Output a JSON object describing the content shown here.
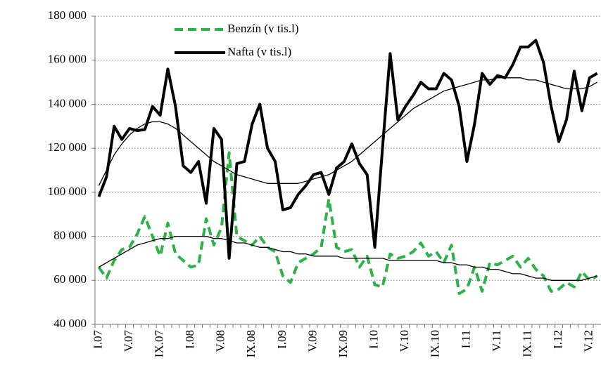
{
  "chart_data": {
    "type": "line",
    "categories": [
      "I.07",
      null,
      null,
      null,
      "V.07",
      null,
      null,
      null,
      "IX.07",
      null,
      null,
      null,
      "I.08",
      null,
      null,
      null,
      "V.08",
      null,
      null,
      null,
      "IX.08",
      null,
      null,
      null,
      "I.09",
      null,
      null,
      null,
      "V.09",
      null,
      null,
      null,
      "IX.09",
      null,
      null,
      null,
      "I.10",
      null,
      null,
      null,
      "V.10",
      null,
      null,
      null,
      "IX.10",
      null,
      null,
      null,
      "I.11",
      null,
      null,
      null,
      "V.11",
      null,
      null,
      null,
      "IX.11",
      null,
      null,
      null,
      "I.12",
      null,
      null,
      null,
      "V.12",
      null
    ],
    "series": [
      {
        "name": "Benzín (v tis.l)",
        "color": "#2db24a",
        "dashed": true,
        "values": [
          66000,
          61000,
          69000,
          74000,
          75000,
          81000,
          89000,
          80000,
          71000,
          86000,
          72000,
          69000,
          66000,
          67000,
          88000,
          76000,
          84000,
          118000,
          80000,
          78000,
          76000,
          80000,
          75000,
          73000,
          62000,
          59000,
          68000,
          70000,
          72000,
          75000,
          97000,
          75000,
          73000,
          74000,
          66000,
          71000,
          58000,
          57000,
          72000,
          70000,
          71000,
          73000,
          77000,
          71000,
          73000,
          68000,
          76000,
          54000,
          56000,
          66000,
          55000,
          68000,
          67000,
          69000,
          71000,
          66000,
          70000,
          65000,
          62000,
          55000,
          56000,
          59000,
          57000,
          64000,
          60000,
          62000
        ]
      },
      {
        "name": "Nafta (v tis.l)",
        "color": "#000000",
        "values": [
          98000,
          107000,
          130000,
          124000,
          129000,
          128000,
          128500,
          139000,
          135000,
          156000,
          139000,
          112000,
          109000,
          114000,
          95000,
          129000,
          124000,
          70000,
          113000,
          114000,
          131000,
          140000,
          120000,
          114000,
          92000,
          93000,
          99000,
          103000,
          108000,
          109000,
          99000,
          111000,
          114000,
          122000,
          113000,
          108000,
          75000,
          120000,
          163000,
          133000,
          139000,
          144000,
          150000,
          147000,
          147000,
          154000,
          151000,
          139000,
          114000,
          131000,
          154000,
          149000,
          153000,
          152000,
          158000,
          166000,
          166000,
          169000,
          159000,
          139000,
          123000,
          133000,
          155000,
          137000,
          152000,
          154000
        ]
      },
      {
        "color": "#000000",
        "values": [
          66000,
          68000,
          70000,
          72000,
          74000,
          76000,
          77000,
          78000,
          79000,
          79000,
          80000,
          80000,
          80000,
          80000,
          80000,
          79000,
          79000,
          78000,
          77000,
          77000,
          76000,
          75000,
          75000,
          74000,
          73000,
          73000,
          72000,
          72000,
          71000,
          71000,
          71000,
          71000,
          70000,
          70000,
          70000,
          70000,
          70000,
          70000,
          69000,
          69000,
          69000,
          69000,
          69000,
          69000,
          69000,
          68000,
          68000,
          67000,
          67000,
          66000,
          66000,
          65000,
          65000,
          64000,
          63000,
          63000,
          62000,
          61000,
          61000,
          60000,
          60000,
          60000,
          60000,
          60000,
          61000,
          62000
        ]
      },
      {
        "color": "#000000",
        "values": [
          103000,
          110000,
          117000,
          122000,
          126000,
          129000,
          131000,
          132000,
          132000,
          131000,
          129000,
          126000,
          123000,
          120000,
          117000,
          114000,
          112000,
          110000,
          108000,
          107000,
          106000,
          105000,
          104000,
          104000,
          104000,
          104000,
          104000,
          105000,
          106000,
          107000,
          108000,
          110000,
          112000,
          114000,
          117000,
          120000,
          123000,
          126000,
          129000,
          132000,
          135000,
          138000,
          140000,
          142000,
          144000,
          146000,
          147000,
          148000,
          149000,
          150000,
          151000,
          151000,
          152000,
          152000,
          152000,
          152000,
          151000,
          151000,
          150000,
          149000,
          148000,
          147000,
          147000,
          147000,
          148000,
          150000
        ]
      }
    ],
    "ylim": [
      40000,
      180000
    ],
    "yticks": [
      {
        "value": 40000,
        "label": "40 000"
      },
      {
        "value": 60000,
        "label": "60 000"
      },
      {
        "value": 80000,
        "label": "80 000"
      },
      {
        "value": 100000,
        "label": "100 000"
      },
      {
        "value": 120000,
        "label": "120 000"
      },
      {
        "value": 140000,
        "label": "140 000"
      },
      {
        "value": 160000,
        "label": "160 000"
      },
      {
        "value": 180000,
        "label": "180 000"
      }
    ],
    "grid": true,
    "legend": "top-left"
  }
}
